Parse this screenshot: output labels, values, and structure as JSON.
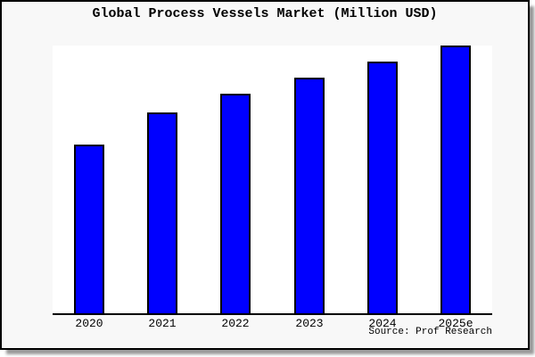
{
  "header": {
    "title": "Global Process Vessels Market (Million USD)"
  },
  "footer": {
    "source": "Source: Prof Research"
  },
  "chart_data": {
    "type": "bar",
    "title": "Global Process Vessels Market (Million USD)",
    "categories": [
      "2020",
      "2021",
      "2022",
      "2023",
      "2024",
      "2025e"
    ],
    "values": [
      63,
      75,
      82,
      88,
      94,
      100
    ],
    "values_note": "No y-axis scale is rendered in the image; values are estimated bar heights as percent of the tallest bar (2025e = 100)",
    "xlabel": "",
    "ylabel": "",
    "ylim": [
      0,
      100
    ],
    "grid": false,
    "legend": false,
    "y_axis_visible": false,
    "bar_color": "#0000ff",
    "bar_edge_color": "#000000",
    "axis_color": "#000000",
    "background_color": "#f8f8f8",
    "plot_background_color": "#ffffff",
    "source": "Source: Prof Research"
  }
}
